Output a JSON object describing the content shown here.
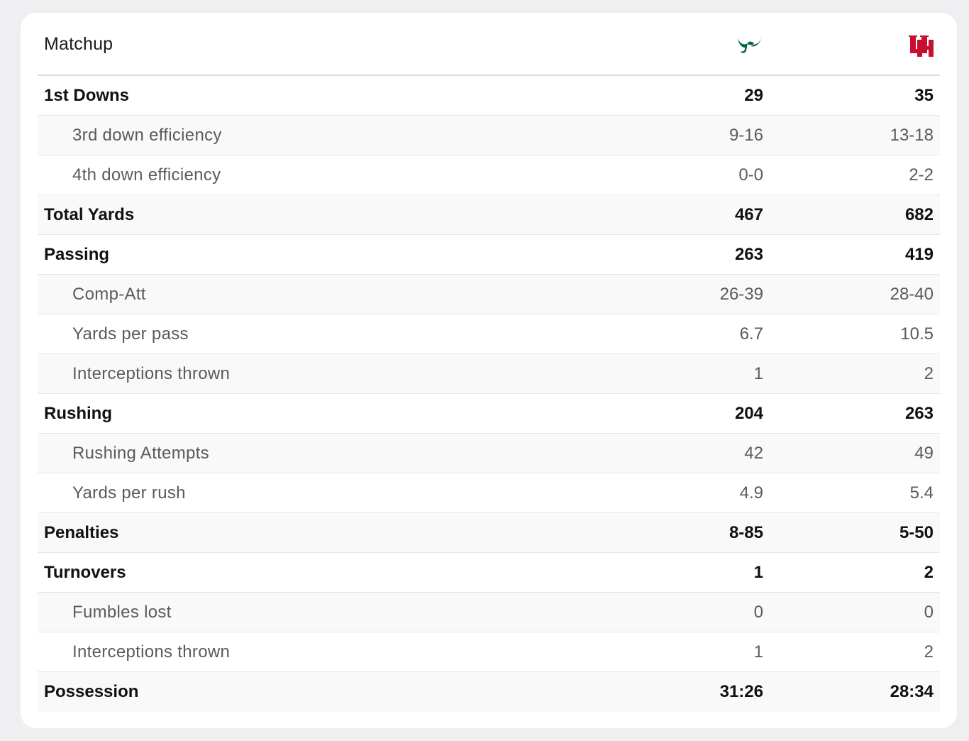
{
  "header": {
    "title": "Matchup",
    "team1_logo": "usf-bulls-logo-icon",
    "team1_color": "#006747",
    "team2_logo": "houston-uh-logo-icon",
    "team2_color": "#c8102e"
  },
  "rows": [
    {
      "label": "1st Downs",
      "type": "main",
      "v1": "29",
      "v2": "35"
    },
    {
      "label": "3rd down efficiency",
      "type": "sub",
      "v1": "9-16",
      "v2": "13-18"
    },
    {
      "label": "4th down efficiency",
      "type": "sub",
      "v1": "0-0",
      "v2": "2-2"
    },
    {
      "label": "Total Yards",
      "type": "main",
      "v1": "467",
      "v2": "682"
    },
    {
      "label": "Passing",
      "type": "main",
      "v1": "263",
      "v2": "419"
    },
    {
      "label": "Comp-Att",
      "type": "sub",
      "v1": "26-39",
      "v2": "28-40"
    },
    {
      "label": "Yards per pass",
      "type": "sub",
      "v1": "6.7",
      "v2": "10.5"
    },
    {
      "label": "Interceptions thrown",
      "type": "sub",
      "v1": "1",
      "v2": "2"
    },
    {
      "label": "Rushing",
      "type": "main",
      "v1": "204",
      "v2": "263"
    },
    {
      "label": "Rushing Attempts",
      "type": "sub",
      "v1": "42",
      "v2": "49"
    },
    {
      "label": "Yards per rush",
      "type": "sub",
      "v1": "4.9",
      "v2": "5.4"
    },
    {
      "label": "Penalties",
      "type": "main",
      "v1": "8-85",
      "v2": "5-50"
    },
    {
      "label": "Turnovers",
      "type": "main",
      "v1": "1",
      "v2": "2"
    },
    {
      "label": "Fumbles lost",
      "type": "sub",
      "v1": "0",
      "v2": "0"
    },
    {
      "label": "Interceptions thrown",
      "type": "sub",
      "v1": "1",
      "v2": "2"
    },
    {
      "label": "Possession",
      "type": "main",
      "v1": "31:26",
      "v2": "28:34"
    }
  ]
}
